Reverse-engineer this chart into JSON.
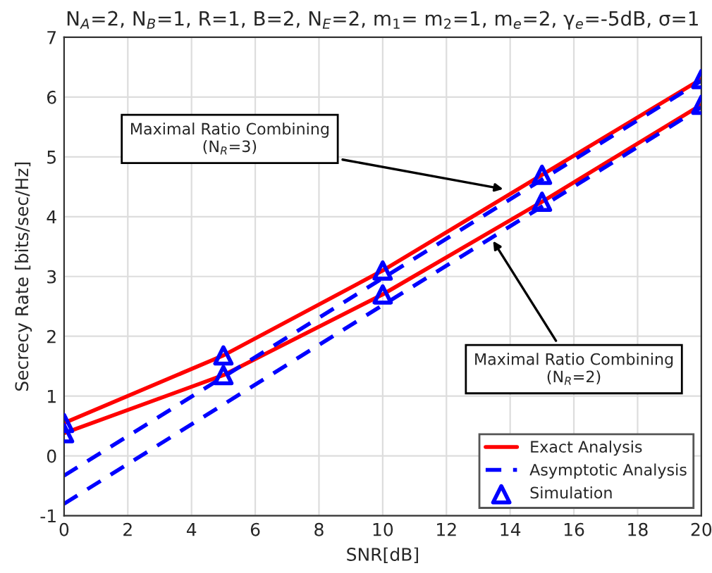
{
  "chart_data": {
    "type": "line",
    "title": "N$_{A}$=2, N$_{B}$=1, R=1, B=2, N$_{E}$=2, m$_{1}$= m$_{2}$=1, m$_{e}$=2, γ$_{e}$=-5dB, σ=1",
    "xlabel": "SNR[dB]",
    "ylabel": "Secrecy Rate [bits/sec/Hz]",
    "x": [
      0,
      5,
      10,
      15,
      20
    ],
    "series": [
      {
        "name": "Exact Analysis",
        "color": "#ff0000",
        "line_style": "solid",
        "marker": "none",
        "values": [
          0.55,
          1.68,
          3.1,
          4.7,
          6.3
        ]
      },
      {
        "color": "#ff0000",
        "line_style": "solid",
        "marker": "none",
        "values": [
          0.38,
          1.35,
          2.7,
          4.25,
          5.87
        ]
      },
      {
        "name": "Asymptotic Analysis",
        "color": "#0000ff",
        "line_style": "dashed",
        "marker": "none",
        "values": [
          -0.33,
          1.32,
          2.97,
          4.62,
          6.27
        ]
      },
      {
        "color": "#0000ff",
        "line_style": "dashed",
        "marker": "none",
        "values": [
          -0.8,
          0.86,
          2.52,
          4.17,
          5.83
        ]
      },
      {
        "name": "Simulation",
        "type": "scatter",
        "color": "#0000ff",
        "marker": "triangle",
        "values": [
          0.55,
          1.68,
          3.1,
          4.7,
          6.3
        ]
      },
      {
        "type": "scatter",
        "color": "#0000ff",
        "marker": "triangle",
        "values": [
          0.38,
          1.35,
          2.7,
          4.25,
          5.87
        ]
      }
    ],
    "annotations": [
      {
        "text": "Maximal Ratio Combining\n(N$_{R}$=3)",
        "x": 13.9,
        "y": 4.45
      },
      {
        "text": "Maximal Ratio Combining\n(N$_{R}$=2)",
        "x": 13.4,
        "y": 3.65
      }
    ],
    "xlim": [
      0,
      20
    ],
    "xticks": [
      0,
      2,
      4,
      6,
      8,
      10,
      12,
      14,
      16,
      18,
      20
    ],
    "ylim": [
      -1,
      7
    ],
    "yticks": [
      -1,
      0,
      1,
      2,
      3,
      4,
      5,
      6,
      7
    ],
    "grid": true,
    "legend": "bottom right"
  }
}
